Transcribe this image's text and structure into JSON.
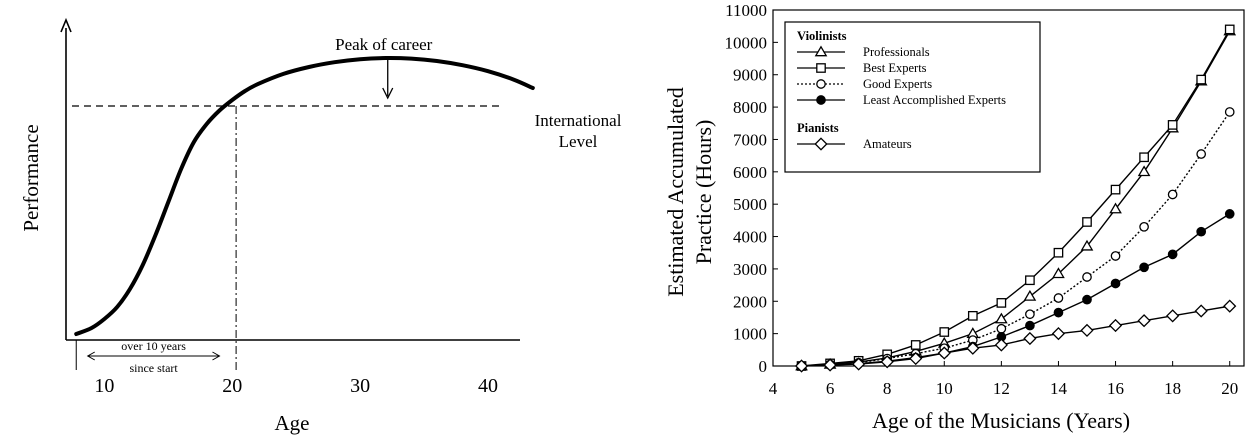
{
  "chart_data": [
    {
      "type": "line",
      "title": "",
      "xlabel": "Age",
      "ylabel": "Performance",
      "x_ticks": [
        "10",
        "20",
        "30",
        "40"
      ],
      "xlim": [
        7,
        45
      ],
      "series": [
        {
          "x": [
            7.8,
            9,
            10,
            11,
            12,
            13,
            14,
            15,
            16,
            17,
            18,
            19,
            20,
            21,
            22,
            24,
            26,
            28,
            30,
            32,
            34,
            36,
            38,
            40,
            42,
            43.5
          ],
          "values": [
            0.02,
            0.04,
            0.07,
            0.11,
            0.17,
            0.25,
            0.35,
            0.46,
            0.57,
            0.66,
            0.72,
            0.765,
            0.8,
            0.83,
            0.853,
            0.887,
            0.91,
            0.926,
            0.936,
            0.94,
            0.938,
            0.93,
            0.916,
            0.896,
            0.868,
            0.84
          ]
        }
      ],
      "reference_line": {
        "label": "International Level",
        "value": 0.78,
        "style": "dashed"
      },
      "annotations": [
        {
          "text": "Peak of career",
          "x": 32,
          "arrow": true
        },
        {
          "text": "over 10 years",
          "from_x": 8.7,
          "to_x": 19,
          "arrow": "double"
        },
        {
          "text": "since start"
        }
      ],
      "vertical_markers": [
        {
          "x": 20.3,
          "style": "dash-dot"
        }
      ]
    },
    {
      "type": "line",
      "title": "",
      "xlabel": "Age of the Musicians (Years)",
      "ylabel": "Estimated Accumulated Practice (Hours)",
      "xlim": [
        4,
        20.5
      ],
      "ylim": [
        0,
        11000
      ],
      "x_ticks": [
        4,
        6,
        8,
        10,
        12,
        14,
        16,
        18,
        20
      ],
      "y_ticks": [
        0,
        1000,
        2000,
        3000,
        4000,
        5000,
        6000,
        7000,
        8000,
        9000,
        10000,
        11000
      ],
      "legend_position": "top-left",
      "legend_groups": [
        {
          "heading": "Violinists",
          "entries": [
            "Professionals",
            "Best Experts",
            "Good Experts",
            "Least Accomplished Experts"
          ]
        },
        {
          "heading": "Pianists",
          "entries": [
            "Amateurs"
          ]
        }
      ],
      "series": [
        {
          "name": "Professionals",
          "marker": "triangle",
          "dash": "solid",
          "x": [
            5,
            6,
            7,
            8,
            9,
            10,
            11,
            12,
            13,
            14,
            15,
            16,
            17,
            18,
            19,
            20
          ],
          "values": [
            0,
            50,
            120,
            250,
            450,
            700,
            1000,
            1450,
            2150,
            2850,
            3700,
            4850,
            6000,
            7350,
            8800,
            10350
          ]
        },
        {
          "name": "Best Experts",
          "marker": "square",
          "dash": "solid",
          "x": [
            5,
            6,
            7,
            8,
            9,
            10,
            11,
            12,
            13,
            14,
            15,
            16,
            17,
            18,
            19,
            20
          ],
          "values": [
            0,
            80,
            160,
            360,
            650,
            1050,
            1550,
            1950,
            2650,
            3500,
            4450,
            5450,
            6450,
            7450,
            8850,
            10400
          ]
        },
        {
          "name": "Good Experts",
          "marker": "circle-open",
          "dash": "dotted",
          "x": [
            5,
            6,
            7,
            8,
            9,
            10,
            11,
            12,
            13,
            14,
            15,
            16,
            17,
            18,
            19,
            20
          ],
          "values": [
            0,
            50,
            100,
            230,
            380,
            550,
            800,
            1150,
            1600,
            2100,
            2750,
            3400,
            4300,
            5300,
            6550,
            7850
          ]
        },
        {
          "name": "Least Accomplished Experts",
          "marker": "circle-filled",
          "dash": "solid",
          "x": [
            5,
            6,
            7,
            8,
            9,
            10,
            11,
            12,
            13,
            14,
            15,
            16,
            17,
            18,
            19,
            20
          ],
          "values": [
            0,
            30,
            70,
            150,
            260,
            400,
            600,
            900,
            1250,
            1650,
            2050,
            2550,
            3050,
            3450,
            4150,
            4700
          ]
        },
        {
          "name": "Amateurs",
          "marker": "diamond",
          "dash": "solid",
          "x": [
            5,
            6,
            7,
            8,
            9,
            10,
            11,
            12,
            13,
            14,
            15,
            16,
            17,
            18,
            19,
            20
          ],
          "values": [
            0,
            30,
            60,
            130,
            230,
            400,
            550,
            650,
            850,
            1000,
            1100,
            1250,
            1400,
            1550,
            1700,
            1850
          ]
        }
      ]
    }
  ]
}
